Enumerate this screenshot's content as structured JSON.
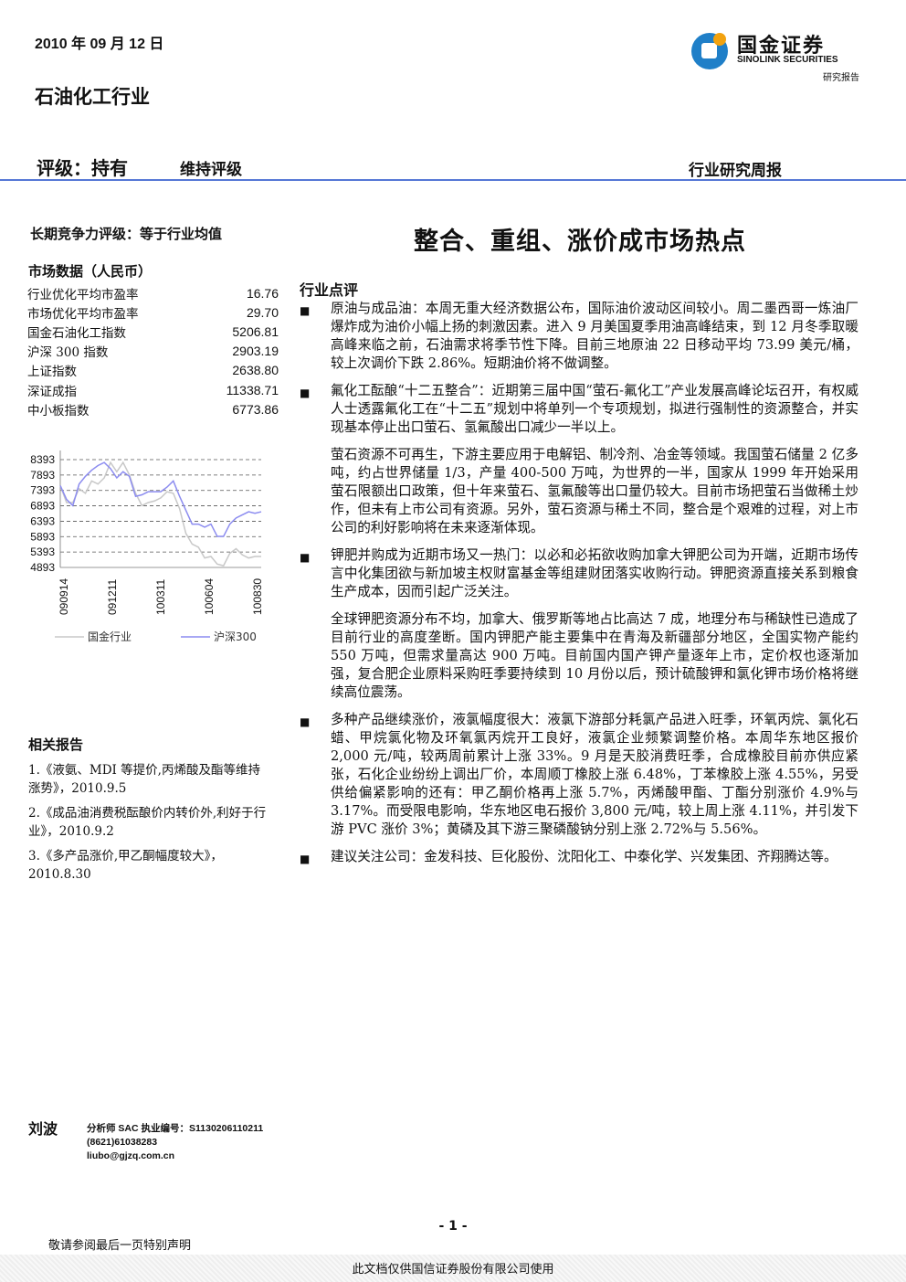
{
  "header": {
    "date": "2010 年 09 月 12 日",
    "industry": "石油化工行业",
    "logo_cn": "国金证券",
    "logo_en": "SINOLINK SECURITIES",
    "logo_sub": "研究报告",
    "rating": "评级：持有",
    "maintain": "维持评级",
    "report_type": "行业研究周报",
    "rule_color": "#5577d6"
  },
  "left": {
    "long_term": "长期竞争力评级：等于行业均值",
    "market_title": "市场数据（人民币）",
    "market": [
      {
        "label": "行业优化平均市盈率",
        "value": "16.76"
      },
      {
        "label": "市场优化平均市盈率",
        "value": "29.70"
      },
      {
        "label": "国金石油化工指数",
        "value": "5206.81"
      },
      {
        "label": "沪深 300 指数",
        "value": "2903.19"
      },
      {
        "label": "上证指数",
        "value": "2638.80"
      },
      {
        "label": "深证成指",
        "value": "11338.71"
      },
      {
        "label": "中小板指数",
        "value": "6773.86"
      }
    ],
    "related_title": "相关报告",
    "related": [
      "1.《液氨、MDI 等提价,丙烯酸及酯等维持涨势》，2010.9.5",
      "2.《成品油消费税酝酿价内转价外,利好于行业》，2010.9.2",
      "3.《多产品涨价,甲乙酮幅度较大》，2010.8.30"
    ]
  },
  "chart_data": {
    "type": "line",
    "yticks": [
      "8393",
      "7893",
      "7393",
      "6893",
      "6393",
      "5893",
      "5393",
      "4893"
    ],
    "ylim": [
      4893,
      8643
    ],
    "xticks": [
      "090914",
      "091211",
      "100311",
      "100604",
      "100830"
    ],
    "grid": "horizontal dashed",
    "legend_placement": "bottom",
    "series": [
      {
        "name": "国金行业",
        "color": "#c8c8c8",
        "values": [
          7550,
          7000,
          7000,
          7450,
          7300,
          7700,
          7600,
          7800,
          8300,
          8000,
          8300,
          7900,
          7300,
          6900,
          7000,
          7050,
          7150,
          7350,
          7300,
          6800,
          6000,
          5650,
          5550,
          5200,
          5250,
          5000,
          4950,
          5350,
          5500,
          5300,
          5200,
          5250,
          5250
        ]
      },
      {
        "name": "沪深300",
        "color": "#8c8cf0",
        "values": [
          7550,
          7100,
          6900,
          7600,
          7850,
          8050,
          8200,
          8300,
          8100,
          7800,
          8000,
          7850,
          7200,
          7250,
          7350,
          7350,
          7350,
          7500,
          7700,
          7200,
          6750,
          6300,
          6300,
          6200,
          6300,
          5900,
          5900,
          6300,
          6500,
          6600,
          6700,
          6650,
          6700
        ]
      }
    ]
  },
  "main": {
    "title": "整合、重组、涨价成市场热点",
    "section": "行业点评",
    "items": [
      {
        "text": "原油与成品油：本周无重大经济数据公布，国际油价波动区间较小。周二墨西哥一炼油厂爆炸成为油价小幅上扬的刺激因素。进入 9 月美国夏季用油高峰结束，到 12 月冬季取暖高峰来临之前，石油需求将季节性下降。目前三地原油 22 日移动平均 73.99 美元/桶，较上次调价下跌 2.86%。短期油价将不做调整。"
      },
      {
        "text": "氟化工酝酿“十二五整合”：近期第三届中国“萤石-氟化工”产业发展高峰论坛召开，有权威人士透露氟化工在“十二五”规划中将单列一个专项规划，拟进行强制性的资源整合，并实现基本停止出口萤石、氢氟酸出口减少一半以上。",
        "sub": "萤石资源不可再生，下游主要应用于电解铝、制冷剂、冶金等领域。我国萤石储量 2 亿多吨，约占世界储量 1/3，产量 400-500 万吨，为世界的一半，国家从 1999 年开始采用萤石限额出口政策，但十年来萤石、氢氟酸等出口量仍较大。目前市场把萤石当做稀土炒作，但未有上市公司有资源。另外，萤石资源与稀土不同，整合是个艰难的过程，对上市公司的利好影响将在未来逐渐体现。"
      },
      {
        "text": "钾肥并购成为近期市场又一热门：以必和必拓欲收购加拿大钾肥公司为开端，近期市场传言中化集团欲与新加坡主权财富基金等组建财团落实收购行动。钾肥资源直接关系到粮食生产成本，因而引起广泛关注。",
        "sub": "全球钾肥资源分布不均，加拿大、俄罗斯等地占比高达 7 成，地理分布与稀缺性已造成了目前行业的高度垄断。国内钾肥产能主要集中在青海及新疆部分地区，全国实物产能约 550 万吨，但需求量高达 900 万吨。目前国内国产钾产量逐年上市，定价权也逐渐加强，复合肥企业原料采购旺季要持续到 10 月份以后，预计硫酸钾和氯化钾市场价格将继续高位震荡。"
      },
      {
        "text": "多种产品继续涨价，液氯幅度很大：液氯下游部分耗氯产品进入旺季，环氧丙烷、氯化石蜡、甲烷氯化物及环氧氯丙烷开工良好，液氯企业频繁调整价格。本周华东地区报价 2,000 元/吨，较两周前累计上涨 33%。9 月是天胶消费旺季，合成橡胶目前亦供应紧张，石化企业纷纷上调出厂价，本周顺丁橡胶上涨 6.48%，丁苯橡胶上涨 4.55%，另受供给偏紧影响的还有：甲乙酮价格再上涨 5.7%，丙烯酸甲酯、丁酯分别涨价 4.9%与 3.17%。而受限电影响，华东地区电石报价 3,800 元/吨，较上周上涨 4.11%，并引发下游 PVC 涨价 3%；黄磷及其下游三聚磷酸钠分别上涨 2.72%与 5.56%。"
      },
      {
        "text": "建议关注公司：金发科技、巨化股份、沈阳化工、中泰化学、兴发集团、齐翔腾达等。"
      }
    ]
  },
  "footer": {
    "author": "刘波",
    "license": "分析师 SAC 执业编号：S1130206110211",
    "phone": "(8621)61038283",
    "email": "liubo@gjzq.com.cn",
    "page": "- 1 -",
    "notice": "敬请参阅最后一页特别声明",
    "usage": "此文档仅供国信证券股份有限公司使用"
  }
}
